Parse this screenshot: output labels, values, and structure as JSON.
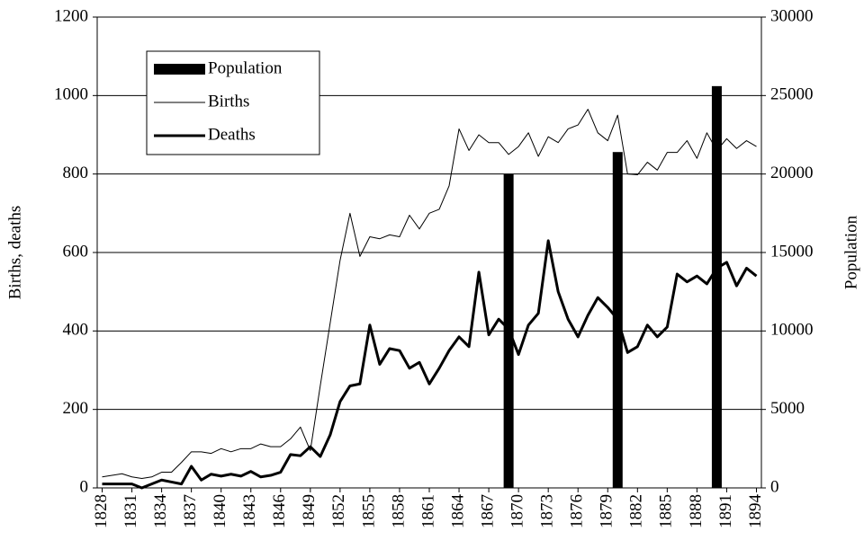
{
  "chart_data": {
    "type": "line",
    "y_label": "Births, deaths",
    "y2_label": "Population",
    "x": [
      1828,
      1829,
      1830,
      1831,
      1832,
      1833,
      1834,
      1835,
      1836,
      1837,
      1838,
      1839,
      1840,
      1841,
      1842,
      1843,
      1844,
      1845,
      1846,
      1847,
      1848,
      1849,
      1850,
      1851,
      1852,
      1853,
      1854,
      1855,
      1856,
      1857,
      1858,
      1859,
      1860,
      1861,
      1862,
      1863,
      1864,
      1865,
      1866,
      1867,
      1868,
      1869,
      1870,
      1871,
      1872,
      1873,
      1874,
      1875,
      1876,
      1877,
      1878,
      1879,
      1880,
      1881,
      1882,
      1883,
      1884,
      1885,
      1886,
      1887,
      1888,
      1889,
      1890,
      1891,
      1892,
      1893,
      1894
    ],
    "xlim": [
      1827.5,
      1894.5
    ],
    "xticks": [
      1828,
      1831,
      1834,
      1837,
      1840,
      1843,
      1846,
      1849,
      1852,
      1855,
      1858,
      1861,
      1864,
      1867,
      1870,
      1873,
      1876,
      1879,
      1882,
      1885,
      1888,
      1891,
      1894
    ],
    "ylim": [
      0,
      1200
    ],
    "yticks": [
      0,
      200,
      400,
      600,
      800,
      1000,
      1200
    ],
    "y2lim": [
      0,
      30000
    ],
    "y2ticks": [
      0,
      5000,
      10000,
      15000,
      20000,
      25000,
      30000
    ],
    "grid": true,
    "legend": "upper left",
    "series": [
      {
        "name": "Population",
        "type": "bar",
        "axis": "y2",
        "color": "#000000",
        "values": [
          null,
          null,
          null,
          null,
          null,
          null,
          null,
          null,
          null,
          null,
          null,
          null,
          null,
          null,
          null,
          null,
          null,
          null,
          null,
          null,
          null,
          null,
          null,
          null,
          null,
          null,
          null,
          null,
          null,
          null,
          null,
          null,
          null,
          null,
          null,
          null,
          null,
          null,
          null,
          null,
          null,
          20000,
          null,
          null,
          null,
          null,
          null,
          null,
          null,
          null,
          null,
          null,
          21400,
          null,
          null,
          null,
          null,
          null,
          null,
          null,
          null,
          null,
          25600,
          null,
          null,
          null,
          null
        ]
      },
      {
        "name": "Births",
        "type": "line",
        "color": "#000000",
        "line_width": 1,
        "values": [
          28,
          32,
          36,
          28,
          24,
          28,
          40,
          40,
          65,
          92,
          92,
          88,
          100,
          92,
          100,
          100,
          112,
          105,
          105,
          125,
          155,
          95,
          260,
          420,
          580,
          700,
          590,
          640,
          635,
          645,
          640,
          695,
          660,
          700,
          710,
          770,
          915,
          860,
          900,
          880,
          880,
          850,
          870,
          905,
          845,
          895,
          880,
          915,
          925,
          965,
          905,
          885,
          950,
          800,
          798,
          830,
          810,
          855,
          855,
          885,
          840,
          905,
          860,
          890,
          865,
          885,
          870
        ]
      },
      {
        "name": "Deaths",
        "type": "line",
        "color": "#000000",
        "line_width": 3,
        "values": [
          10,
          10,
          10,
          10,
          0,
          10,
          20,
          15,
          10,
          55,
          20,
          35,
          30,
          35,
          30,
          42,
          28,
          32,
          40,
          85,
          82,
          105,
          80,
          135,
          220,
          260,
          265,
          415,
          315,
          355,
          350,
          305,
          320,
          265,
          305,
          350,
          385,
          360,
          550,
          390,
          430,
          405,
          340,
          415,
          445,
          630,
          500,
          430,
          385,
          440,
          485,
          460,
          430,
          345,
          360,
          415,
          385,
          410,
          545,
          525,
          540,
          520,
          560,
          575,
          515,
          560,
          540
        ]
      }
    ]
  }
}
